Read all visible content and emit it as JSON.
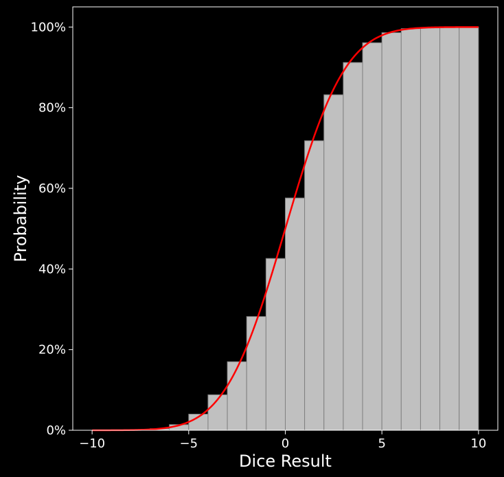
{
  "chart_data": {
    "type": "bar",
    "title": "",
    "xlabel": "Dice Result",
    "ylabel": "Probability",
    "xlim": [
      -11,
      11
    ],
    "ylim": [
      0,
      105
    ],
    "xticks": [
      -10,
      -5,
      0,
      5,
      10
    ],
    "xtick_labels": [
      "−10",
      "−5",
      "0",
      "5",
      "10"
    ],
    "yticks": [
      0,
      20,
      40,
      60,
      80,
      100
    ],
    "ytick_labels": [
      "0%",
      "20%",
      "40%",
      "60%",
      "80%",
      "100%"
    ],
    "grid": false,
    "bars": {
      "name": "cumulative",
      "color": "#c0c0c0",
      "edge_color": "#808080",
      "x_left": [
        -10,
        -9,
        -8,
        -7,
        -6,
        -5,
        -4,
        -3,
        -2,
        -1,
        0,
        1,
        2,
        3,
        4,
        5,
        6,
        7,
        8,
        9
      ],
      "values": [
        0.0,
        0.0,
        0.1,
        0.4,
        1.4,
        4.0,
        8.8,
        17.0,
        28.2,
        42.6,
        57.6,
        71.8,
        83.2,
        91.2,
        96.1,
        98.6,
        99.6,
        99.9,
        100.0,
        100.0
      ]
    },
    "curve": {
      "name": "normal-cdf-fit",
      "color": "#ff0000",
      "mean": 0,
      "sd": 2.45,
      "x_range": [
        -10,
        10
      ]
    }
  }
}
